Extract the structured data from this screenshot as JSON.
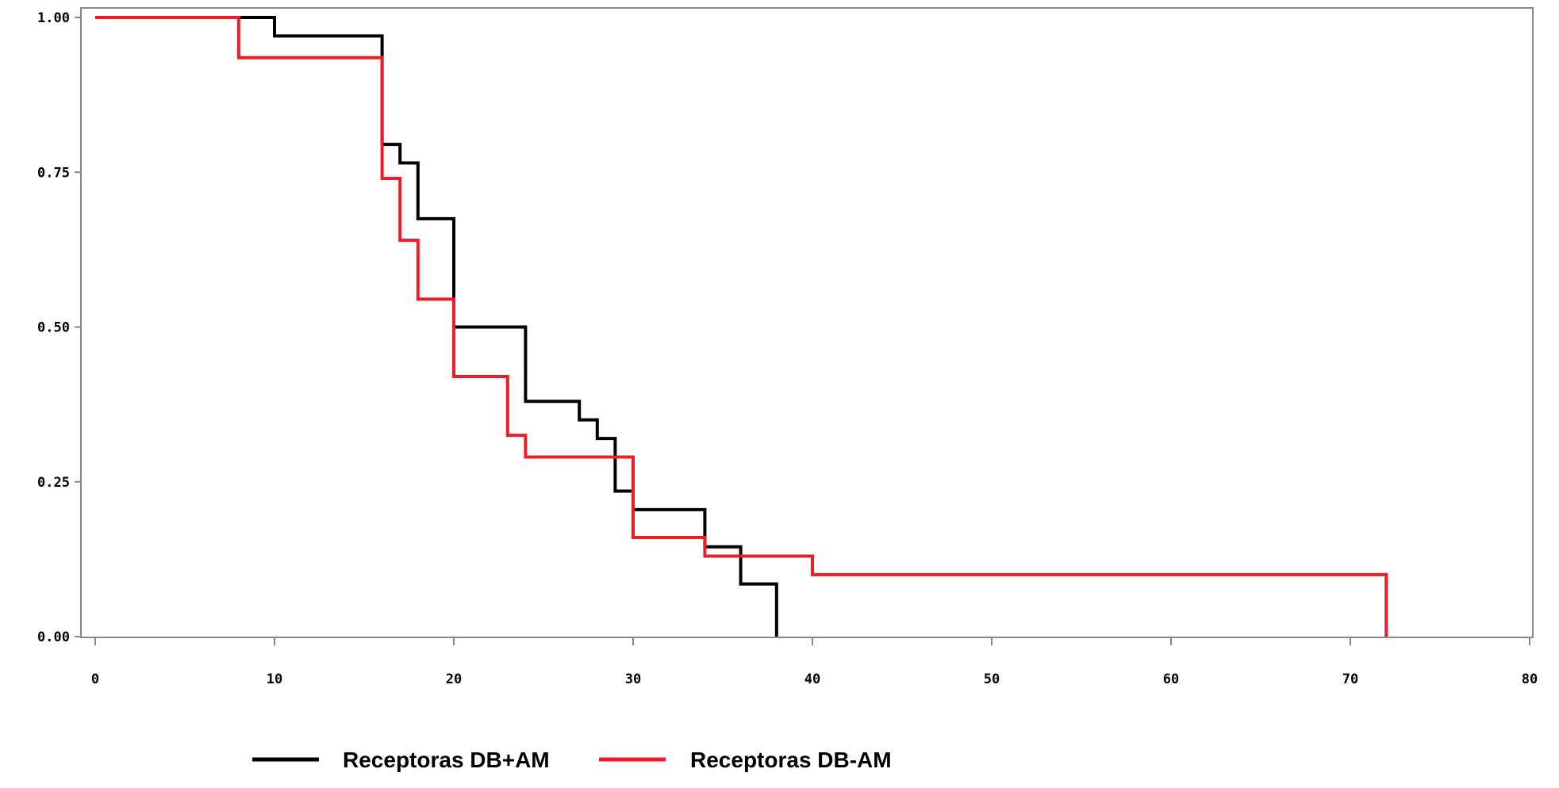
{
  "chart_data": {
    "type": "line",
    "step": true,
    "xlim": [
      0,
      80
    ],
    "ylim": [
      0,
      1
    ],
    "x_ticks": [
      0,
      10,
      20,
      30,
      40,
      50,
      60,
      70,
      80
    ],
    "y_ticks": [
      0,
      0.25,
      0.5,
      0.75,
      1
    ],
    "x_tick_labels": [
      "0",
      "10",
      "20",
      "30",
      "40",
      "50",
      "60",
      "70",
      "80"
    ],
    "y_tick_labels": [
      "0.00",
      "0.25",
      "0.50",
      "0.75",
      "1.00"
    ],
    "grid": false,
    "legend_position": "bottom",
    "series": [
      {
        "name": "Receptoras DB+AM",
        "color": "#000000",
        "x": [
          0,
          10,
          16,
          17,
          18,
          20,
          24,
          27,
          28,
          29,
          30,
          34,
          36,
          38
        ],
        "y": [
          1.0,
          0.97,
          0.795,
          0.765,
          0.675,
          0.5,
          0.38,
          0.35,
          0.32,
          0.235,
          0.205,
          0.145,
          0.085,
          0.0
        ]
      },
      {
        "name": "Receptoras DB-AM",
        "color": "#ee1c25",
        "x": [
          0,
          8,
          16,
          17,
          18,
          20,
          23,
          24,
          30,
          34,
          40,
          72
        ],
        "y": [
          1.0,
          0.935,
          0.74,
          0.64,
          0.545,
          0.42,
          0.325,
          0.29,
          0.16,
          0.13,
          0.1,
          0.0
        ]
      }
    ]
  }
}
